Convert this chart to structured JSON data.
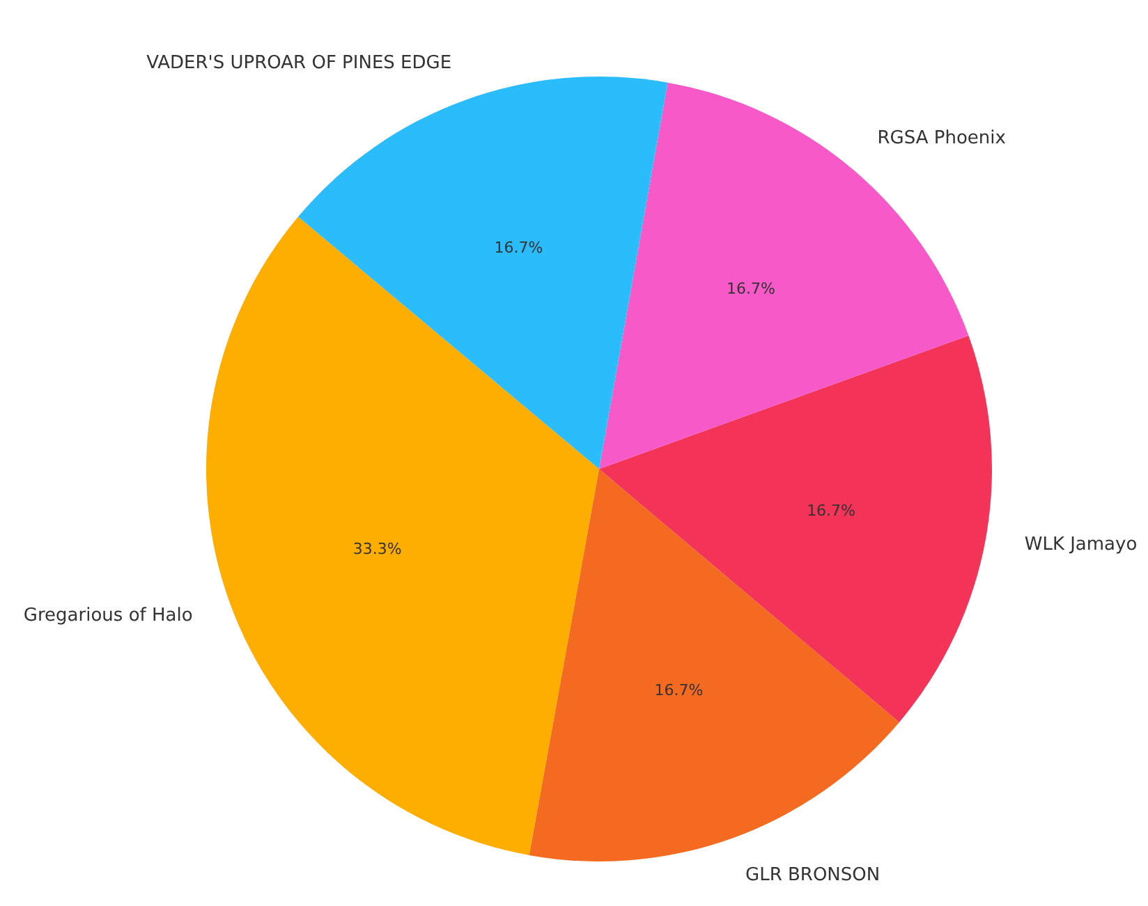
{
  "chart_data": {
    "type": "pie",
    "categories": [
      "Gregarious of Halo",
      "GLR BRONSON",
      "WLK Jamayo",
      "RGSA Phoenix",
      "VADER'S UPROAR OF PINES EDGE"
    ],
    "values": [
      33.3,
      16.7,
      16.7,
      16.7,
      16.7
    ],
    "colors": [
      "#feae00",
      "#f46a20",
      "#f43358",
      "#f75ac8",
      "#2bbcfc"
    ],
    "value_labels": [
      "33.3%",
      "16.7%",
      "16.7%",
      "16.7%",
      "16.7%"
    ]
  }
}
